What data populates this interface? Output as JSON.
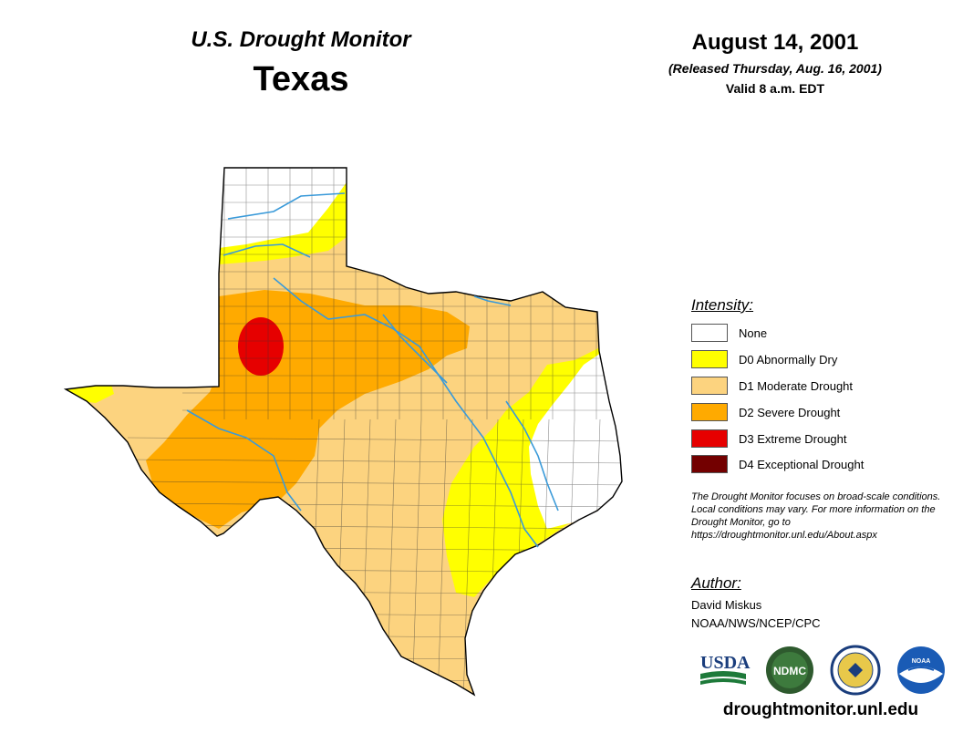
{
  "header": {
    "monitor_title": "U.S. Drought Monitor",
    "state": "Texas",
    "date": "August 14, 2001",
    "released": "(Released Thursday, Aug. 16, 2001)",
    "valid": "Valid 8 a.m. EDT"
  },
  "legend": {
    "title": "Intensity:",
    "items": [
      {
        "label": "None",
        "color": "#ffffff"
      },
      {
        "label": "D0 Abnormally Dry",
        "color": "#ffff00"
      },
      {
        "label": "D1 Moderate Drought",
        "color": "#fcd37f"
      },
      {
        "label": "D2 Severe Drought",
        "color": "#ffaa00"
      },
      {
        "label": "D3 Extreme Drought",
        "color": "#e60000"
      },
      {
        "label": "D4 Exceptional Drought",
        "color": "#730000"
      }
    ]
  },
  "note": "The Drought Monitor focuses on broad-scale conditions. Local conditions may vary. For more information on the Drought Monitor, go to https://droughtmonitor.unl.edu/About.aspx",
  "author": {
    "title": "Author:",
    "name": "David Miskus",
    "org": "NOAA/NWS/NCEP/CPC"
  },
  "logos": {
    "usda": "USDA",
    "ndmc": "NDMC",
    "noaa": "NOAA"
  },
  "website": "droughtmonitor.unl.edu"
}
